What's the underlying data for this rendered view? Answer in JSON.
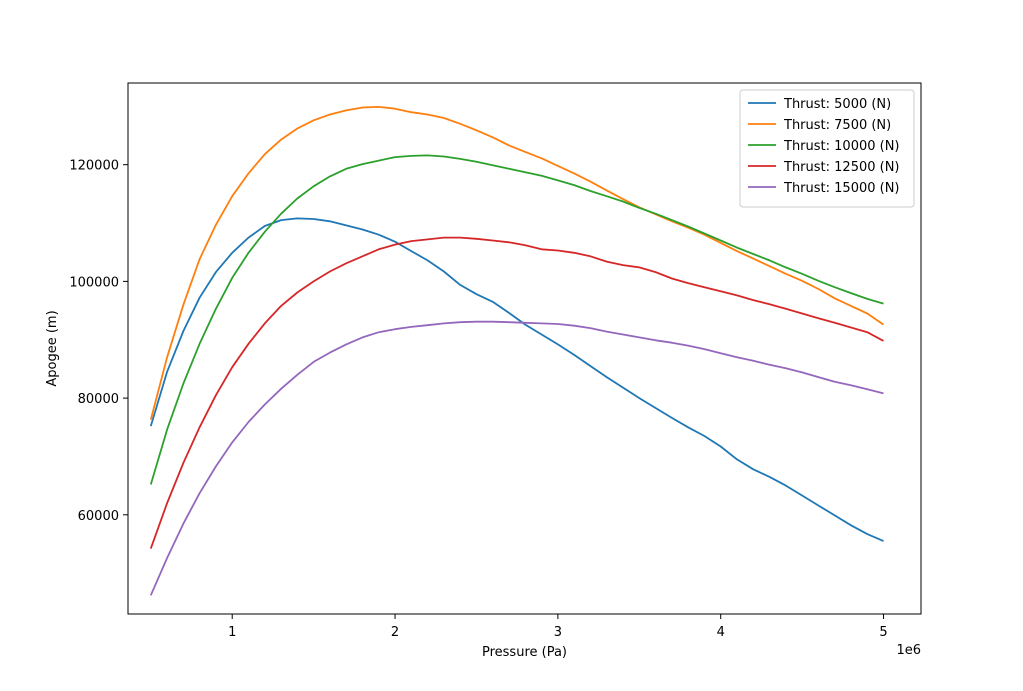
{
  "chart_data": {
    "type": "line",
    "title": "",
    "xlabel": "Pressure (Pa)",
    "ylabel": "Apogee (m)",
    "x_offset_label": "1e6",
    "xlim": [
      0.36,
      5.23
    ],
    "ylim": [
      43000,
      134000
    ],
    "xticks": [
      1,
      2,
      3,
      4,
      5
    ],
    "xtick_labels": [
      "1",
      "2",
      "3",
      "4",
      "5"
    ],
    "yticks": [
      60000,
      80000,
      100000,
      120000
    ],
    "ytick_labels": [
      "60000",
      "80000",
      "100000",
      "120000"
    ],
    "grid": false,
    "legend_position": "top-right",
    "x": [
      0.5,
      0.6,
      0.7,
      0.8,
      0.9,
      1.0,
      1.1,
      1.2,
      1.3,
      1.4,
      1.5,
      1.6,
      1.7,
      1.8,
      1.9,
      2.0,
      2.1,
      2.2,
      2.3,
      2.4,
      2.5,
      2.6,
      2.7,
      2.8,
      2.9,
      3.0,
      3.1,
      3.2,
      3.3,
      3.4,
      3.5,
      3.6,
      3.7,
      3.8,
      3.9,
      4.0,
      4.1,
      4.2,
      4.3,
      4.4,
      4.5,
      4.6,
      4.7,
      4.8,
      4.9,
      5.0
    ],
    "series": [
      {
        "name": "Thrust: 5000 (N)",
        "color": "#1f77b4",
        "values": [
          75200,
          84500,
          91500,
          97200,
          101600,
          104900,
          107500,
          109500,
          110500,
          110800,
          110700,
          110300,
          109600,
          108900,
          108000,
          106800,
          105200,
          103600,
          101700,
          99400,
          97800,
          96500,
          94600,
          92600,
          90900,
          89200,
          87400,
          85500,
          83600,
          81800,
          80000,
          78300,
          76600,
          75000,
          73500,
          71700,
          69500,
          67800,
          66500,
          65000,
          63300,
          61600,
          59900,
          58200,
          56700,
          55500
        ]
      },
      {
        "name": "Thrust: 7500 (N)",
        "color": "#ff7f0e",
        "values": [
          76300,
          87000,
          96000,
          103800,
          109700,
          114600,
          118500,
          121800,
          124300,
          126200,
          127600,
          128600,
          129300,
          129800,
          129900,
          129600,
          129000,
          128600,
          128000,
          127000,
          125900,
          124700,
          123300,
          122200,
          121100,
          119800,
          118500,
          117100,
          115600,
          114100,
          112700,
          111500,
          110300,
          109200,
          108000,
          106600,
          105200,
          103900,
          102600,
          101300,
          100100,
          98700,
          97100,
          95800,
          94500,
          92600
        ]
      },
      {
        "name": "Thrust: 10000 (N)",
        "color": "#2ca02c",
        "values": [
          65200,
          74600,
          82500,
          89300,
          95300,
          100600,
          104900,
          108500,
          111600,
          114200,
          116300,
          118000,
          119300,
          120100,
          120700,
          121300,
          121500,
          121600,
          121400,
          121000,
          120500,
          119900,
          119300,
          118700,
          118100,
          117300,
          116500,
          115500,
          114600,
          113700,
          112600,
          111600,
          110500,
          109400,
          108200,
          107000,
          105800,
          104700,
          103600,
          102400,
          101300,
          100100,
          99000,
          98000,
          97000,
          96200
        ]
      },
      {
        "name": "Thrust: 12500 (N)",
        "color": "#d62728",
        "values": [
          54200,
          62000,
          68900,
          75000,
          80500,
          85300,
          89300,
          92800,
          95800,
          98100,
          100000,
          101700,
          103100,
          104300,
          105500,
          106300,
          106900,
          107200,
          107500,
          107500,
          107300,
          107000,
          106700,
          106200,
          105500,
          105300,
          104900,
          104300,
          103400,
          102800,
          102400,
          101600,
          100500,
          99700,
          99000,
          98300,
          97600,
          96800,
          96100,
          95300,
          94500,
          93700,
          92900,
          92100,
          91300,
          89800
        ]
      },
      {
        "name": "Thrust: 15000 (N)",
        "color": "#9467bd",
        "values": [
          46200,
          52600,
          58500,
          63700,
          68300,
          72400,
          75900,
          78900,
          81600,
          84000,
          86200,
          87800,
          89200,
          90400,
          91300,
          91800,
          92200,
          92500,
          92800,
          93000,
          93100,
          93100,
          93000,
          92900,
          92800,
          92700,
          92400,
          92000,
          91400,
          90900,
          90400,
          89900,
          89500,
          89000,
          88400,
          87700,
          87000,
          86400,
          85700,
          85100,
          84400,
          83600,
          82800,
          82200,
          81500,
          80800
        ]
      }
    ]
  }
}
